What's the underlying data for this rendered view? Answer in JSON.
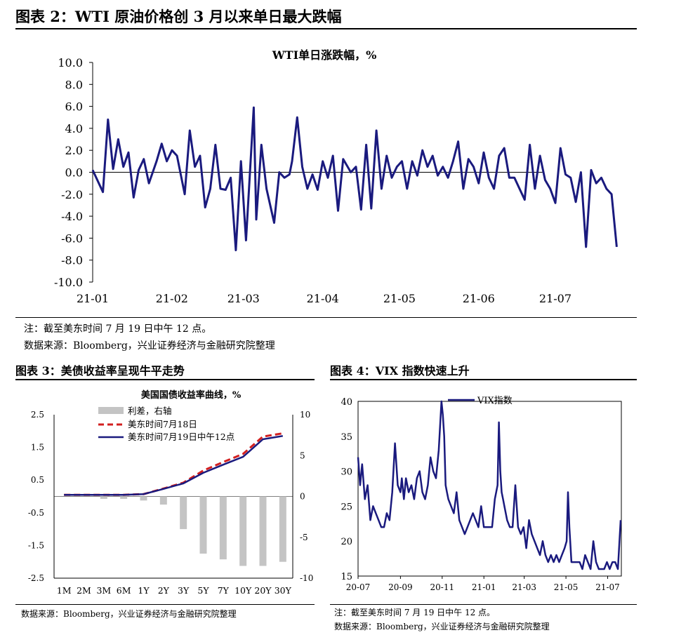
{
  "figure2": {
    "title": "图表 2：WTI 原油价格创 3 月以来单日最大跌幅",
    "note": "注：截至美东时间 7 月 19 日中午 12 点。",
    "source": "数据来源：Bloomberg，兴业证券经济与金融研究院整理"
  },
  "figure3": {
    "title": "图表 3：美债收益率呈现牛平走势",
    "source": "数据来源：Bloomberg，兴业证券经济与金融研究院整理"
  },
  "figure4": {
    "title": "图表 4：VIX 指数快速上升",
    "note": "注：截至美东时间 7 月 19 日中午 12 点。",
    "source": "数据来源：Bloomberg，兴业证券经济与金融研究院整理"
  },
  "colors": {
    "navy": "#1a1a7e",
    "red": "#d21f1f",
    "gray": "#c4c4c4"
  },
  "chart_data": [
    {
      "type": "line",
      "title": "WTI单日涨跌幅，%",
      "ylim": [
        -10,
        10
      ],
      "yticks": [
        "10.0",
        "8.0",
        "6.0",
        "4.0",
        "2.0",
        "0.0",
        "-2.0",
        "-4.0",
        "-6.0",
        "-8.0",
        "-10.0"
      ],
      "xticks": [
        "21-01",
        "21-02",
        "21-03",
        "21-04",
        "21-05",
        "21-06",
        "21-07"
      ],
      "x_range_days": [
        0,
        206
      ],
      "xtick_days": [
        0,
        31,
        59,
        90,
        120,
        151,
        181
      ],
      "grid": false,
      "series": [
        {
          "color": "#1a1a7e",
          "x_days": [
            0,
            4,
            6,
            8,
            10,
            12,
            14,
            16,
            18,
            20,
            22,
            25,
            27,
            29,
            31,
            33,
            36,
            38,
            40,
            42,
            44,
            46,
            48,
            50,
            52,
            54,
            56,
            58,
            60,
            63,
            64,
            66,
            68,
            71,
            73,
            75,
            77,
            78,
            80,
            82,
            84,
            86,
            88,
            90,
            92,
            94,
            96,
            98,
            101,
            103,
            105,
            107,
            109,
            111,
            113,
            115,
            117,
            119,
            121,
            123,
            125,
            127,
            129,
            131,
            133,
            135,
            137,
            139,
            141,
            143,
            145,
            147,
            149,
            151,
            153,
            155,
            157,
            159,
            161,
            163,
            165,
            167,
            169,
            171,
            173,
            175,
            177,
            179,
            181,
            183,
            185,
            187,
            189,
            191,
            193,
            195,
            197,
            199,
            201,
            203,
            205
          ],
          "values": [
            0.2,
            -1.8,
            4.8,
            0.3,
            3.0,
            0.5,
            1.8,
            -2.3,
            0.2,
            1.2,
            -1.0,
            1.0,
            2.6,
            1.0,
            2.0,
            1.5,
            -2.0,
            3.8,
            0.5,
            1.5,
            -3.2,
            -1.5,
            2.5,
            -1.5,
            -1.6,
            -0.5,
            -7.1,
            1.0,
            -6.2,
            5.9,
            -4.3,
            2.5,
            -1.5,
            -4.6,
            0.0,
            -0.5,
            -0.2,
            1.0,
            5.0,
            0.5,
            -1.5,
            -0.2,
            -1.6,
            1.0,
            -0.5,
            1.5,
            -3.5,
            1.2,
            0.0,
            0.5,
            -3.4,
            2.5,
            -3.3,
            3.8,
            -1.5,
            1.5,
            -0.5,
            0.5,
            1.0,
            -1.5,
            1.0,
            -0.3,
            2.0,
            0.5,
            1.5,
            -0.3,
            0.5,
            -0.5,
            1.0,
            2.8,
            -1.5,
            1.2,
            0.5,
            -1.0,
            1.8,
            -0.5,
            -1.5,
            1.5,
            2.2,
            -0.5,
            -0.5,
            -1.5,
            -2.5,
            2.5,
            -1.5,
            1.5,
            -0.7,
            -1.5,
            -2.8,
            2.2,
            -0.2,
            -0.5,
            -2.7,
            0.0,
            -6.8,
            0.2,
            -1.0,
            -0.5,
            -1.5,
            -2.0,
            -6.8
          ]
        }
      ]
    },
    {
      "type": "bar+line",
      "title": "美国国债收益率曲线，%",
      "categories": [
        "1M",
        "2M",
        "3M",
        "6M",
        "1Y",
        "2Y",
        "3Y",
        "5Y",
        "7Y",
        "10Y",
        "20Y",
        "30Y"
      ],
      "left_ylim": [
        -2.5,
        2.5
      ],
      "left_yticks": [
        "2.5",
        "1.5",
        "0.5",
        "-0.5",
        "-1.5",
        "-2.5"
      ],
      "right_ylim": [
        -10,
        10
      ],
      "right_yticks": [
        "10",
        "5",
        "0",
        "-5",
        "-10"
      ],
      "legend_placement": "top-left",
      "series": [
        {
          "name": "利差，右轴",
          "type": "bar",
          "axis": "right",
          "color": "#c4c4c4",
          "values": [
            0,
            0,
            -0.3,
            -0.3,
            -0.5,
            -1.0,
            -4.0,
            -7.0,
            -7.7,
            -8.5,
            -8.5,
            -8.0
          ]
        },
        {
          "name": "美东时间7月18日",
          "type": "line",
          "axis": "left",
          "color": "#d21f1f",
          "dashed": true,
          "values": [
            0.05,
            0.05,
            0.05,
            0.05,
            0.07,
            0.24,
            0.42,
            0.79,
            1.05,
            1.3,
            1.83,
            1.93
          ]
        },
        {
          "name": "美东时间7月19日中午12点",
          "type": "line",
          "axis": "left",
          "color": "#1a1a7e",
          "values": [
            0.05,
            0.05,
            0.05,
            0.05,
            0.07,
            0.23,
            0.4,
            0.72,
            0.97,
            1.21,
            1.75,
            1.85
          ]
        }
      ]
    },
    {
      "type": "line",
      "ylim": [
        15,
        40
      ],
      "yticks": [
        "40",
        "35",
        "30",
        "25",
        "20",
        "15"
      ],
      "xticks": [
        "20-07",
        "20-09",
        "20-11",
        "21-01",
        "21-03",
        "21-05",
        "21-07"
      ],
      "x_range_days": [
        0,
        385
      ],
      "xtick_days": [
        0,
        62,
        123,
        184,
        243,
        304,
        365
      ],
      "legend_placement": "top-left",
      "series": [
        {
          "name": "VIX指数",
          "color": "#1a1a7e",
          "x_days": [
            0,
            3,
            6,
            10,
            14,
            18,
            22,
            26,
            30,
            34,
            38,
            42,
            46,
            50,
            54,
            58,
            62,
            64,
            67,
            70,
            74,
            78,
            82,
            86,
            90,
            94,
            98,
            102,
            106,
            110,
            114,
            118,
            122,
            124,
            126,
            128,
            130,
            132,
            136,
            140,
            144,
            148,
            152,
            156,
            160,
            164,
            168,
            172,
            176,
            180,
            184,
            188,
            192,
            196,
            200,
            204,
            206,
            208,
            210,
            212,
            214,
            218,
            222,
            226,
            230,
            234,
            238,
            242,
            246,
            250,
            254,
            258,
            262,
            266,
            270,
            274,
            278,
            282,
            286,
            290,
            294,
            298,
            302,
            305,
            307,
            309,
            312,
            316,
            320,
            324,
            328,
            332,
            336,
            340,
            344,
            348,
            352,
            356,
            360,
            364,
            368,
            372,
            376,
            380,
            384
          ],
          "values": [
            32,
            28,
            31,
            26,
            28,
            23,
            25,
            24,
            23,
            22,
            22,
            24,
            23,
            27,
            34,
            28,
            27,
            29,
            26,
            29,
            27,
            28,
            26,
            29,
            30,
            27,
            26,
            28,
            32,
            30,
            29,
            33,
            40,
            38,
            35,
            28,
            27,
            26,
            25,
            24,
            27,
            23,
            22,
            21,
            22,
            23,
            24,
            23,
            22,
            25,
            22,
            22,
            22,
            22,
            26,
            28,
            37,
            30,
            27,
            26,
            25,
            23,
            22,
            22,
            28,
            22,
            21,
            22,
            19,
            23,
            21,
            20,
            19,
            18,
            20,
            18,
            17,
            18,
            17,
            18,
            17,
            18,
            19,
            20,
            27,
            22,
            17,
            17,
            17,
            17,
            16,
            18,
            17,
            16,
            20,
            17,
            16,
            16,
            16,
            17,
            16,
            17,
            17,
            16,
            23
          ]
        }
      ]
    }
  ]
}
